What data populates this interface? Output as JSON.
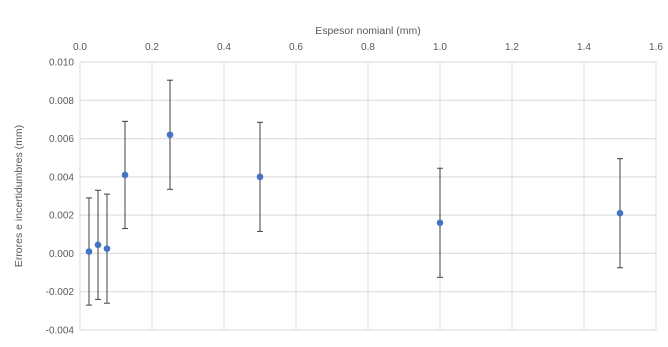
{
  "chart_data": {
    "type": "scatter",
    "title": "",
    "xlabel": "Espesor nomianl (mm)",
    "ylabel": "Errores e incertidumbres (mm)",
    "x_axis_position": "top",
    "xlim": [
      0,
      1.6
    ],
    "ylim": [
      -0.004,
      0.01
    ],
    "x_ticks": [
      "0.0",
      "0.2",
      "0.4",
      "0.6",
      "0.8",
      "1.0",
      "1.2",
      "1.4",
      "1.6"
    ],
    "x_tick_values": [
      0,
      0.2,
      0.4,
      0.6,
      0.8,
      1.0,
      1.2,
      1.4,
      1.6
    ],
    "y_ticks": [
      "0.010",
      "0.008",
      "0.006",
      "0.004",
      "0.002",
      "0.000",
      "-0.002",
      "-0.004"
    ],
    "y_tick_values": [
      0.01,
      0.008,
      0.006,
      0.004,
      0.002,
      0,
      -0.002,
      -0.004
    ],
    "grid": true,
    "legend": "none",
    "marker_color": "#4472C4",
    "error_bar_color": "#404040",
    "grid_color": "#D9D9D9",
    "points": [
      {
        "x": 0.025,
        "y": 0.0001,
        "err": 0.0028
      },
      {
        "x": 0.05,
        "y": 0.00045,
        "err": 0.00285
      },
      {
        "x": 0.075,
        "y": 0.00025,
        "err": 0.00285
      },
      {
        "x": 0.125,
        "y": 0.0041,
        "err": 0.0028
      },
      {
        "x": 0.25,
        "y": 0.0062,
        "err": 0.00285
      },
      {
        "x": 0.5,
        "y": 0.004,
        "err": 0.00285
      },
      {
        "x": 1.0,
        "y": 0.0016,
        "err": 0.00285
      },
      {
        "x": 1.5,
        "y": 0.0021,
        "err": 0.00285
      }
    ]
  }
}
